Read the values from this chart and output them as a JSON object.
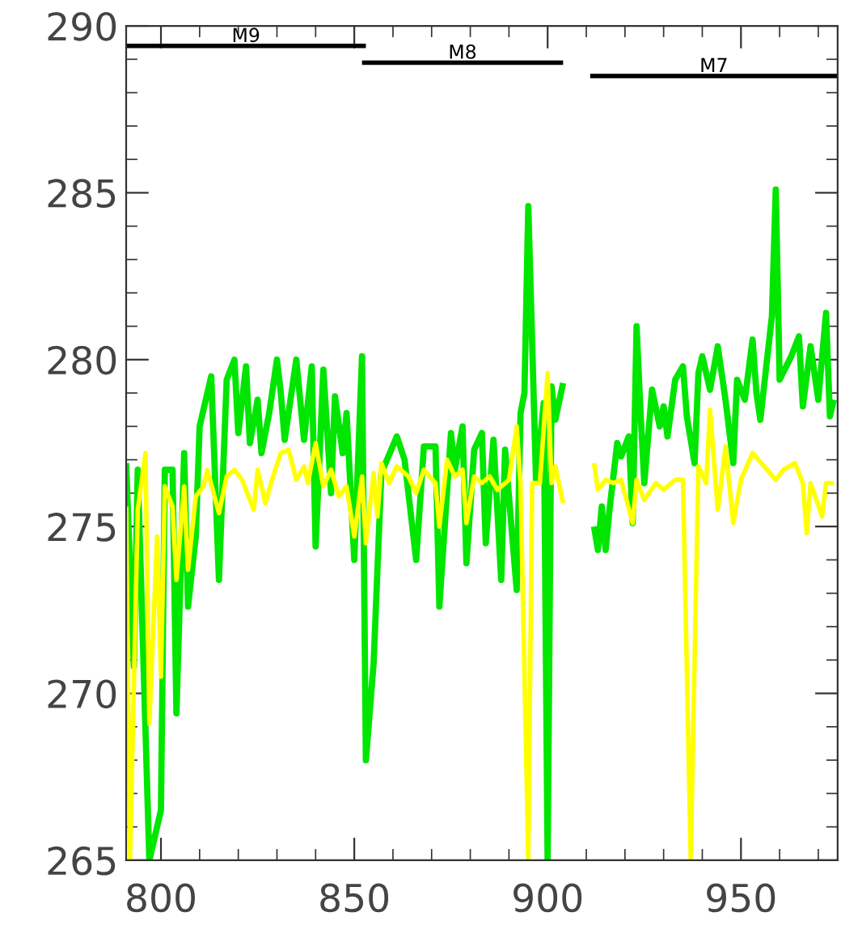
{
  "chart_data": {
    "type": "line",
    "xlim": [
      791,
      975
    ],
    "ylim": [
      265,
      290
    ],
    "xticks": [
      800,
      850,
      900,
      950,
      {
        "value": 810,
        "label": null
      },
      {
        "value": 820,
        "label": null
      },
      {
        "value": 830,
        "label": null
      },
      {
        "value": 840,
        "label": null
      },
      {
        "value": 860,
        "label": null
      },
      {
        "value": 870,
        "label": null
      },
      {
        "value": 880,
        "label": null
      },
      {
        "value": 890,
        "label": null
      },
      {
        "value": 910,
        "label": null
      },
      {
        "value": 920,
        "label": null
      },
      {
        "value": 930,
        "label": null
      },
      {
        "value": 940,
        "label": null
      },
      {
        "value": 960,
        "label": null
      },
      {
        "value": 970,
        "label": null
      }
    ],
    "yticks": [
      265,
      270,
      275,
      280,
      285,
      290,
      {
        "value": 266,
        "label": null
      },
      {
        "value": 267,
        "label": null
      },
      {
        "value": 268,
        "label": null
      },
      {
        "value": 269,
        "label": null
      },
      {
        "value": 271,
        "label": null
      },
      {
        "value": 272,
        "label": null
      },
      {
        "value": 273,
        "label": null
      },
      {
        "value": 274,
        "label": null
      },
      {
        "value": 276,
        "label": null
      },
      {
        "value": 277,
        "label": null
      },
      {
        "value": 278,
        "label": null
      },
      {
        "value": 279,
        "label": null
      },
      {
        "value": 281,
        "label": null
      },
      {
        "value": 282,
        "label": null
      },
      {
        "value": 283,
        "label": null
      },
      {
        "value": 284,
        "label": null
      },
      {
        "value": 286,
        "label": null
      },
      {
        "value": 287,
        "label": null
      },
      {
        "value": 288,
        "label": null
      },
      {
        "value": 289,
        "label": null
      }
    ],
    "grid": false,
    "legend": false,
    "series": [
      {
        "color": "#00e600",
        "x": [
          791,
          793,
          794,
          797,
          800,
          801,
          803,
          804,
          806,
          807,
          809,
          810,
          813,
          815,
          817,
          819,
          820,
          822,
          823,
          825,
          826,
          828,
          830,
          831,
          832,
          835,
          837,
          839,
          840,
          842,
          844,
          845,
          847,
          848,
          850,
          852,
          853,
          855,
          857,
          861,
          863,
          866,
          868,
          871,
          872,
          875,
          876,
          878,
          879,
          881,
          883,
          884,
          886,
          888,
          889,
          892,
          893,
          894,
          895,
          897,
          899,
          900,
          901,
          902,
          904,
          908,
          912,
          913,
          914,
          915,
          916,
          918,
          919,
          921,
          922,
          923,
          924,
          925,
          927,
          929,
          930,
          931,
          933,
          935,
          936,
          938,
          939,
          940,
          942,
          944,
          946,
          948,
          949,
          951,
          953,
          954,
          955,
          958,
          959,
          960,
          963,
          965,
          966,
          968,
          970,
          972,
          973,
          974
        ],
        "values": [
          276.9,
          270.8,
          276.7,
          265,
          266.5,
          276.7,
          276.7,
          269.4,
          277.2,
          272.6,
          274.7,
          278.0,
          279.5,
          273.4,
          279.4,
          280.0,
          277.8,
          279.8,
          277.5,
          278.8,
          277.2,
          278.4,
          280.0,
          279.0,
          277.6,
          280.0,
          277.6,
          279.8,
          274.4,
          279.7,
          276.0,
          278.9,
          277.2,
          278.4,
          274.0,
          280.1,
          268.0,
          270.9,
          276.6,
          277.7,
          277.0,
          274.0,
          277.4,
          277.4,
          272.6,
          277.8,
          276.7,
          278.0,
          273.9,
          277.3,
          277.8,
          274.5,
          277.6,
          273.4,
          277.3,
          273.1,
          278.4,
          279.0,
          284.6,
          276.4,
          278.7,
          265,
          279.2,
          278.2,
          279.3,
          null,
          275.0,
          274.3,
          275.6,
          274.3,
          275.5,
          277.5,
          277.1,
          277.7,
          275.1,
          281.0,
          278.5,
          276.3,
          279.1,
          278.0,
          278.6,
          277.7,
          279.4,
          279.8,
          278.3,
          276.9,
          279.6,
          280.1,
          279.1,
          280.4,
          278.8,
          276.9,
          279.4,
          278.8,
          280.6,
          279.0,
          278.2,
          281.3,
          285.1,
          279.4,
          280.1,
          280.7,
          278.6,
          280.4,
          278.8,
          281.4,
          278.3,
          278.8
        ]
      },
      {
        "color": "#ffff00",
        "x": [
          791,
          792,
          794,
          796,
          797,
          799,
          800,
          801,
          803,
          804,
          806,
          807,
          809,
          811,
          812,
          815,
          817,
          819,
          821,
          824,
          825,
          827,
          829,
          831,
          833,
          835,
          837,
          838,
          840,
          842,
          844,
          846,
          848,
          850,
          852,
          853,
          855,
          856,
          857,
          859,
          861,
          864,
          866,
          868,
          871,
          872,
          874,
          876,
          878,
          879,
          881,
          883,
          885,
          887,
          890,
          892,
          893,
          895,
          896,
          898,
          900,
          901,
          902,
          904,
          908,
          912,
          913,
          915,
          917,
          919,
          922,
          923,
          925,
          928,
          930,
          933,
          935,
          937,
          939,
          941,
          942,
          944,
          946,
          948,
          950,
          953,
          956,
          959,
          961,
          964,
          966,
          967,
          968,
          971,
          972,
          974
        ],
        "values": [
          275.6,
          265,
          275.5,
          277.2,
          269.1,
          274.7,
          270.5,
          276.2,
          275.6,
          273.4,
          276.2,
          273.7,
          275.9,
          276.2,
          276.7,
          275.4,
          276.5,
          276.7,
          276.4,
          275.5,
          276.7,
          275.7,
          276.5,
          277.2,
          277.3,
          276.4,
          276.8,
          276.3,
          277.5,
          276.2,
          276.7,
          275.9,
          276.2,
          274.7,
          276.5,
          274.5,
          276.6,
          275.3,
          276.9,
          276.3,
          276.8,
          276.5,
          276.0,
          276.7,
          276.3,
          275.0,
          277.0,
          276.5,
          276.7,
          275.1,
          276.5,
          276.3,
          276.5,
          276.1,
          276.4,
          278.0,
          276.3,
          265,
          276.3,
          276.3,
          279.6,
          276.3,
          276.8,
          275.7,
          null,
          276.9,
          276.1,
          276.4,
          276.3,
          276.4,
          275.1,
          276.4,
          275.8,
          276.3,
          276.1,
          276.4,
          276.4,
          265,
          276.8,
          276.3,
          278.5,
          275.5,
          277.4,
          275.1,
          276.4,
          277.2,
          276.8,
          276.4,
          276.7,
          276.9,
          276.3,
          274.8,
          276.3,
          275.3,
          276.3,
          276.3
        ]
      },
      {
        "name": "M9",
        "color": "#000000",
        "x": [
          791,
          853
        ],
        "values": [
          289.4,
          289.4
        ]
      },
      {
        "name": "M8",
        "color": "#000000",
        "x": [
          852,
          904
        ],
        "values": [
          288.9,
          288.9
        ]
      },
      {
        "name": "M7",
        "color": "#000000",
        "x": [
          911,
          975
        ],
        "values": [
          288.5,
          288.5
        ]
      }
    ]
  }
}
